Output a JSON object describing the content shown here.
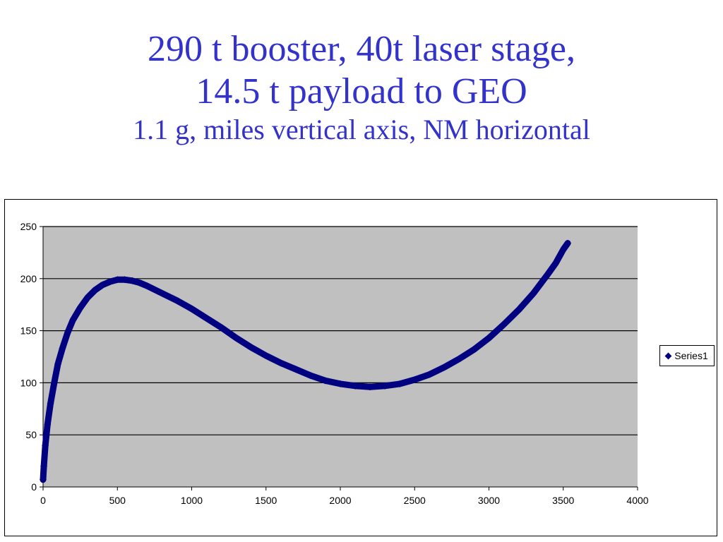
{
  "title": {
    "line1": "290 t booster, 40t laser stage,",
    "line2": "14.5 t payload to GEO",
    "subtitle": "1.1 g,  miles vertical axis, NM horizontal"
  },
  "legend": {
    "label": "Series1"
  },
  "colors": {
    "title": "#3333cc",
    "plot_area": "#c0c0c0",
    "series": "#000080",
    "gridline": "#000000"
  },
  "chart_data": {
    "type": "scatter",
    "title": "",
    "xlabel": "",
    "ylabel": "",
    "xlim": [
      0,
      4000
    ],
    "ylim": [
      0,
      250
    ],
    "x_ticks": [
      "0",
      "500",
      "1000",
      "1500",
      "2000",
      "2500",
      "3000",
      "3500",
      "4000"
    ],
    "y_ticks": [
      "0",
      "50",
      "100",
      "150",
      "200",
      "250"
    ],
    "grid": "horizontal",
    "legend_position": "right",
    "series": [
      {
        "name": "Series1",
        "marker": "diamond",
        "points": [
          [
            0,
            7
          ],
          [
            5,
            20
          ],
          [
            15,
            40
          ],
          [
            30,
            60
          ],
          [
            50,
            80
          ],
          [
            75,
            100
          ],
          [
            100,
            118
          ],
          [
            130,
            133
          ],
          [
            165,
            148
          ],
          [
            200,
            160
          ],
          [
            250,
            172
          ],
          [
            300,
            182
          ],
          [
            350,
            189
          ],
          [
            400,
            194
          ],
          [
            450,
            197
          ],
          [
            500,
            199
          ],
          [
            550,
            199
          ],
          [
            600,
            198
          ],
          [
            650,
            196
          ],
          [
            700,
            193
          ],
          [
            800,
            186
          ],
          [
            900,
            179
          ],
          [
            1000,
            171
          ],
          [
            1100,
            162
          ],
          [
            1200,
            153
          ],
          [
            1300,
            143
          ],
          [
            1400,
            134
          ],
          [
            1500,
            126
          ],
          [
            1600,
            119
          ],
          [
            1700,
            113
          ],
          [
            1800,
            107
          ],
          [
            1900,
            102
          ],
          [
            2000,
            99
          ],
          [
            2100,
            97
          ],
          [
            2200,
            96
          ],
          [
            2300,
            97
          ],
          [
            2400,
            99
          ],
          [
            2500,
            103
          ],
          [
            2600,
            108
          ],
          [
            2700,
            115
          ],
          [
            2800,
            123
          ],
          [
            2900,
            132
          ],
          [
            3000,
            143
          ],
          [
            3100,
            156
          ],
          [
            3200,
            170
          ],
          [
            3300,
            186
          ],
          [
            3400,
            205
          ],
          [
            3450,
            215
          ],
          [
            3500,
            228
          ],
          [
            3530,
            234
          ]
        ]
      }
    ]
  }
}
